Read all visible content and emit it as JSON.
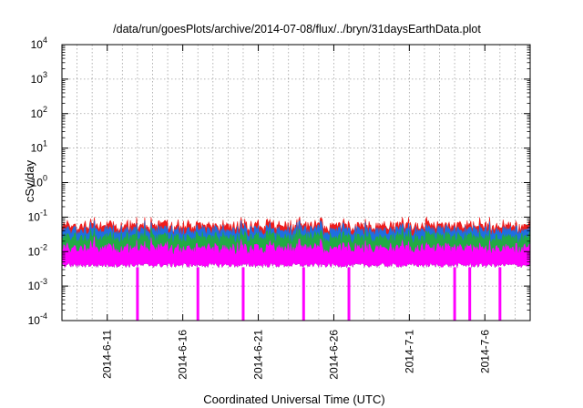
{
  "chart_data": {
    "type": "area",
    "title": "/data/run/goesPlots/archive/2014-07-08/flux/../bryn/31daysEarthData.plot",
    "xlabel": "Coordinated Universal Time (UTC)",
    "ylabel": "cSv/day",
    "yscale": "log",
    "ylim": [
      0.0001,
      10000
    ],
    "y_ticks": [
      {
        "base": "10",
        "exp": "-4",
        "value": 0.0001
      },
      {
        "base": "10",
        "exp": "-3",
        "value": 0.001
      },
      {
        "base": "10",
        "exp": "-2",
        "value": 0.01
      },
      {
        "base": "10",
        "exp": "-1",
        "value": 0.1
      },
      {
        "base": "10",
        "exp": "0",
        "value": 1
      },
      {
        "base": "10",
        "exp": "1",
        "value": 10
      },
      {
        "base": "10",
        "exp": "2",
        "value": 100
      },
      {
        "base": "10",
        "exp": "3",
        "value": 1000
      },
      {
        "base": "10",
        "exp": "4",
        "value": 10000
      }
    ],
    "xlim": [
      "2014-06-08",
      "2014-07-09"
    ],
    "x_tick_labels": [
      "2014-6-11",
      "2014-6-16",
      "2014-6-21",
      "2014-6-26",
      "2014-7-1",
      "2014-7-6"
    ],
    "x_tick_dates": [
      "2014-06-11",
      "2014-06-16",
      "2014-06-21",
      "2014-06-26",
      "2014-07-01",
      "2014-07-06"
    ],
    "grid": true,
    "series": [
      {
        "color": "#ee1c1c",
        "typical": 0.055,
        "min": 0.03,
        "max": 0.1
      },
      {
        "color": "#1f6fe0",
        "typical": 0.04,
        "min": 0.02,
        "max": 0.08
      },
      {
        "color": "#22aa44",
        "typical": 0.025,
        "min": 0.012,
        "max": 0.05
      },
      {
        "color": "#ff00ff",
        "typical": 0.012,
        "min": 0.0035,
        "max": 0.035
      }
    ],
    "magenta_dropouts": [
      "2014-06-13",
      "2014-06-17",
      "2014-06-20",
      "2014-06-24",
      "2014-06-27",
      "2014-07-04",
      "2014-07-05",
      "2014-07-07"
    ]
  }
}
